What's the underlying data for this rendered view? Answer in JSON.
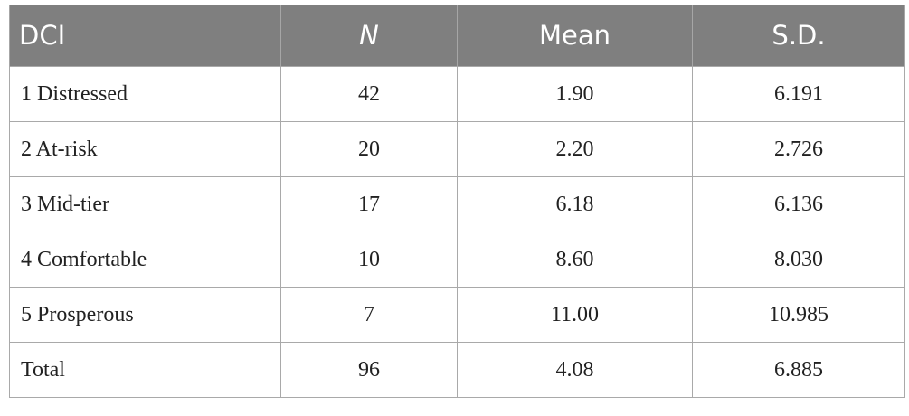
{
  "table": {
    "header": [
      "DCI",
      "N",
      "Mean",
      "S.D."
    ],
    "rows": [
      [
        "1 Distressed",
        "42",
        "1.90",
        "6.191"
      ],
      [
        "2 At-risk",
        "20",
        "2.20",
        "2.726"
      ],
      [
        "3 Mid-tier",
        "17",
        "6.18",
        "6.136"
      ],
      [
        "4 Comfortable",
        "10",
        "8.60",
        "8.030"
      ],
      [
        "5 Prosperous",
        "7",
        "11.00",
        "10.985"
      ],
      [
        "Total",
        "96",
        "4.08",
        "6.885"
      ]
    ]
  }
}
